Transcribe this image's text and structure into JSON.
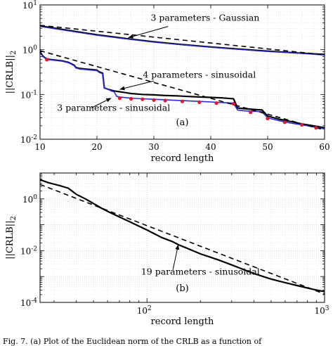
{
  "caption": "Fig. 7. (a) Plot of the Euclidean norm of the CRLB as a function of",
  "chart_data": [
    {
      "type": "line",
      "panel_label": "(a)",
      "xscale": "linear",
      "yscale": "log",
      "xlim": [
        10,
        60
      ],
      "ylim": [
        0.01,
        10
      ],
      "xticks": [
        "10",
        "20",
        "30",
        "40",
        "50",
        "60"
      ],
      "yticks": [
        {
          "base": "10",
          "exp": "1"
        },
        {
          "base": "10",
          "exp": "0"
        },
        {
          "base": "10",
          "exp": "-1"
        },
        {
          "base": "10",
          "exp": "-2"
        }
      ],
      "xlabel": "record length",
      "ylabel": "||CRLB||",
      "ylabel_sub": "2",
      "grid": true,
      "series": [
        {
          "key": "gauss_black",
          "color": "#000000",
          "width": 2.2,
          "x": [
            10,
            15,
            20,
            25,
            30,
            35,
            40,
            45,
            50,
            55,
            60
          ],
          "y": [
            3.4,
            2.7,
            2.15,
            1.78,
            1.5,
            1.3,
            1.15,
            1.03,
            0.93,
            0.85,
            0.78
          ]
        },
        {
          "key": "gauss_blue",
          "color": "#2b2bd6",
          "width": 1.3,
          "x": [
            10,
            15,
            20,
            25,
            30,
            35,
            40,
            45,
            50,
            55,
            60
          ],
          "y": [
            3.3,
            2.62,
            2.1,
            1.74,
            1.47,
            1.28,
            1.13,
            1.01,
            0.91,
            0.84,
            0.76
          ]
        },
        {
          "key": "gauss_bound",
          "color": "#000000",
          "width": 1.6,
          "dash": "7,5",
          "x": [
            10,
            60
          ],
          "y": [
            3.5,
            0.77
          ]
        },
        {
          "key": "sin4",
          "color": "#000000",
          "width": 2.2,
          "x": [
            10,
            10.5,
            11,
            11.5,
            12,
            13,
            14,
            15,
            16,
            16.3,
            17,
            18,
            19,
            20,
            20.4,
            21,
            21.3,
            22,
            22.5,
            23,
            24,
            25,
            26,
            28,
            30,
            32,
            34,
            36,
            38,
            40,
            42,
            44,
            44.7,
            46,
            48,
            49,
            50,
            52,
            54,
            56,
            58,
            60
          ],
          "y": [
            0.9,
            0.72,
            0.64,
            0.61,
            0.6,
            0.58,
            0.56,
            0.52,
            0.45,
            0.4,
            0.38,
            0.37,
            0.36,
            0.35,
            0.32,
            0.3,
            0.14,
            0.13,
            0.125,
            0.12,
            0.115,
            0.11,
            0.105,
            0.1,
            0.098,
            0.095,
            0.093,
            0.09,
            0.088,
            0.086,
            0.084,
            0.08,
            0.05,
            0.048,
            0.046,
            0.045,
            0.033,
            0.028,
            0.025,
            0.022,
            0.02,
            0.018
          ]
        },
        {
          "key": "sin3",
          "color": "#2b2bd6",
          "width": 1.6,
          "x": [
            10,
            10.5,
            11,
            11.5,
            12,
            13,
            14,
            15,
            16,
            16.3,
            17,
            18,
            19,
            20,
            20.4,
            21,
            21.3,
            22,
            22.5,
            23,
            23.5,
            24,
            25,
            26,
            28,
            30,
            32,
            34,
            36,
            38,
            40,
            42,
            44,
            44.7,
            46,
            48,
            49,
            50,
            52,
            54,
            56,
            58,
            60
          ],
          "y": [
            0.88,
            0.7,
            0.63,
            0.6,
            0.59,
            0.57,
            0.55,
            0.51,
            0.44,
            0.39,
            0.37,
            0.36,
            0.35,
            0.34,
            0.31,
            0.29,
            0.14,
            0.13,
            0.12,
            0.115,
            0.09,
            0.088,
            0.085,
            0.083,
            0.08,
            0.078,
            0.076,
            0.074,
            0.072,
            0.07,
            0.068,
            0.066,
            0.064,
            0.045,
            0.043,
            0.042,
            0.041,
            0.03,
            0.026,
            0.023,
            0.021,
            0.019,
            0.017
          ]
        },
        {
          "key": "sin_bound",
          "color": "#000000",
          "width": 1.6,
          "dash": "7,5",
          "x": [
            10,
            60
          ],
          "y": [
            0.95,
            0.016
          ]
        }
      ],
      "markers": {
        "color": "#e0182d",
        "x": [
          11.2,
          24,
          26,
          28,
          30,
          32,
          35,
          38,
          41,
          44,
          47,
          50,
          53,
          56,
          58.5
        ],
        "y": [
          0.6,
          0.083,
          0.08,
          0.078,
          0.075,
          0.073,
          0.07,
          0.067,
          0.064,
          0.062,
          0.04,
          0.029,
          0.024,
          0.021,
          0.018
        ]
      },
      "annotations": [
        {
          "key": "a_gauss",
          "text": "3 parameters - Gaussian",
          "tx": 39,
          "ty": 4.4,
          "anchor": "middle",
          "ax1": 32.5,
          "ay1": 3.3,
          "ax2": 25.5,
          "ay2": 1.85
        },
        {
          "key": "a_sin4",
          "text": "4 parameters - sinusoidal",
          "tx": 38,
          "ty": 0.235,
          "anchor": "middle",
          "ax1": 30,
          "ay1": 0.2,
          "ax2": 24,
          "ay2": 0.13
        },
        {
          "key": "a_sin3",
          "text": "3 parameters - sinusoidal",
          "tx": 13,
          "ty": 0.043,
          "anchor": "start",
          "ax1": 19,
          "ay1": 0.05,
          "ax2": 22.5,
          "ay2": 0.083
        }
      ]
    },
    {
      "type": "line",
      "panel_label": "(b)",
      "xscale": "log",
      "yscale": "log",
      "xlim": [
        25,
        1000
      ],
      "ylim": [
        0.0001,
        10
      ],
      "xticks": [
        {
          "base": "10",
          "exp": "2",
          "value": 100
        },
        {
          "base": "10",
          "exp": "3",
          "value": 1000
        }
      ],
      "yticks": [
        {
          "base": "10",
          "exp": "0",
          "value": 1
        },
        {
          "base": "10",
          "exp": "-2",
          "value": 0.01
        },
        {
          "base": "10",
          "exp": "-4",
          "value": 0.0001
        }
      ],
      "xlabel": "record length",
      "ylabel": "||CRLB||",
      "ylabel_sub": "2",
      "grid": true,
      "series": [
        {
          "key": "sin19",
          "color": "#000000",
          "width": 2.2,
          "x": [
            25,
            28,
            32,
            36,
            40,
            45,
            50,
            55,
            60,
            70,
            80,
            100,
            120,
            140,
            150,
            170,
            200,
            250,
            300,
            400,
            500,
            600,
            700,
            800,
            900,
            1000
          ],
          "y": [
            5.5,
            4.2,
            3.3,
            2.6,
            1.5,
            1.0,
            0.66,
            0.45,
            0.33,
            0.2,
            0.13,
            0.063,
            0.033,
            0.022,
            0.017,
            0.012,
            0.0075,
            0.0045,
            0.0028,
            0.0013,
            0.0008,
            0.00058,
            0.00045,
            0.00036,
            0.0003,
            0.00026
          ]
        },
        {
          "key": "sin19_bound",
          "color": "#000000",
          "width": 1.6,
          "dash": "7,5",
          "x": [
            25,
            1000
          ],
          "y": [
            3.6,
            0.00021
          ]
        }
      ],
      "annotations": [
        {
          "key": "b_sin19",
          "text": "19 parameters - sinusoidal",
          "tx": 200,
          "ty": 0.0012,
          "anchor": "middle",
          "ax1": 140,
          "ay1": 0.0018,
          "ax2": 150,
          "ay2": 0.017
        }
      ]
    }
  ]
}
